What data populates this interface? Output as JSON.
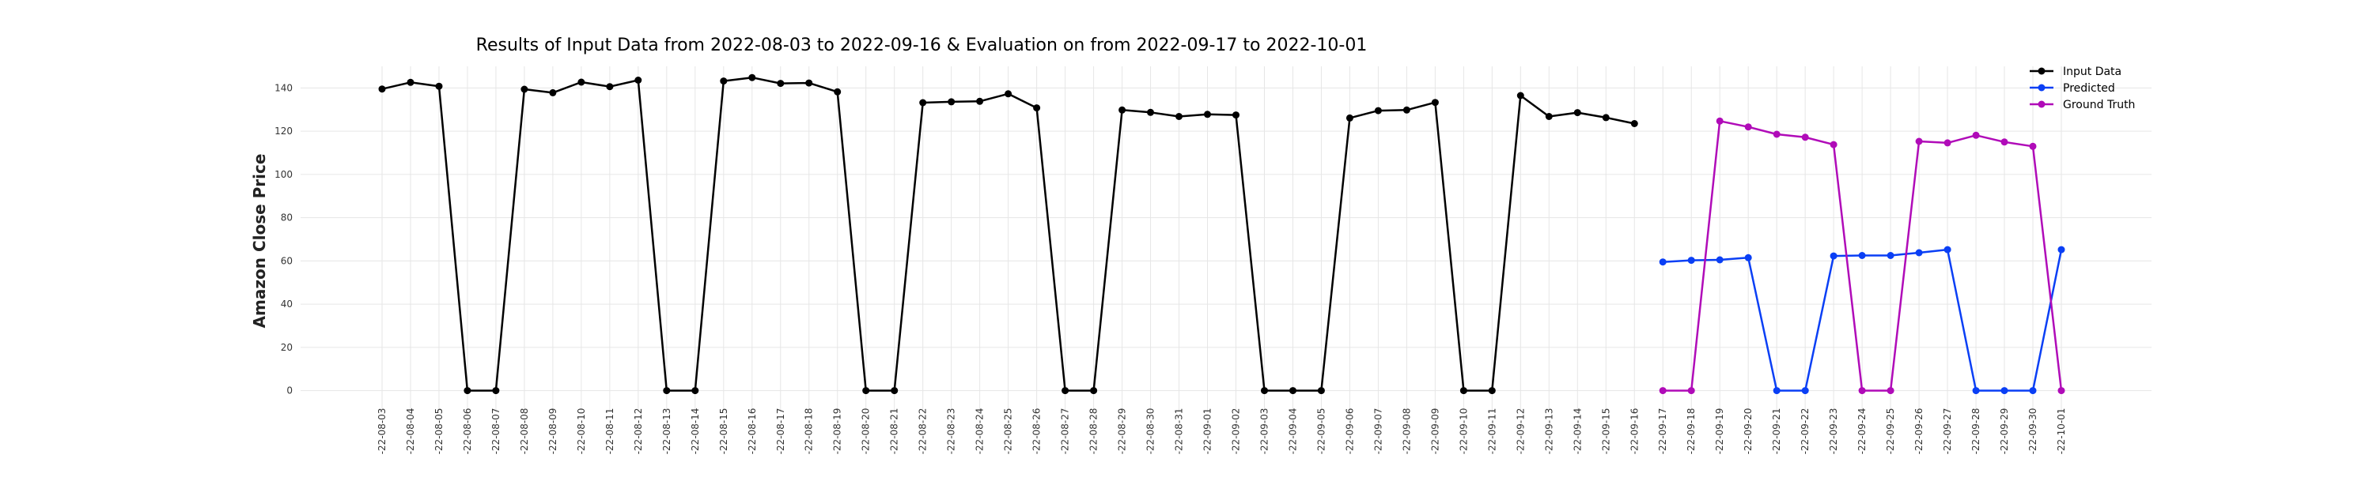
{
  "chart_data": {
    "type": "line",
    "title": "Results of Input Data from 2022-08-03 to 2022-09-16 & Evaluation on from 2022-09-17 to 2022-10-01",
    "xlabel": "",
    "ylabel": "Amazon Close Price",
    "ylim": [
      -10,
      150
    ],
    "yticks": [
      0,
      20,
      40,
      60,
      80,
      100,
      120,
      140
    ],
    "grid": true,
    "legend_position": "top-right",
    "x": [
      "2022-08-03",
      "2022-08-04",
      "2022-08-05",
      "2022-08-06",
      "2022-08-07",
      "2022-08-08",
      "2022-08-09",
      "2022-08-10",
      "2022-08-11",
      "2022-08-12",
      "2022-08-13",
      "2022-08-14",
      "2022-08-15",
      "2022-08-16",
      "2022-08-17",
      "2022-08-18",
      "2022-08-19",
      "2022-08-20",
      "2022-08-21",
      "2022-08-22",
      "2022-08-23",
      "2022-08-24",
      "2022-08-25",
      "2022-08-26",
      "2022-08-27",
      "2022-08-28",
      "2022-08-29",
      "2022-08-30",
      "2022-08-31",
      "2022-09-01",
      "2022-09-02",
      "2022-09-03",
      "2022-09-04",
      "2022-09-05",
      "2022-09-06",
      "2022-09-07",
      "2022-09-08",
      "2022-09-09",
      "2022-09-10",
      "2022-09-11",
      "2022-09-12",
      "2022-09-13",
      "2022-09-14",
      "2022-09-15",
      "2022-09-16",
      "2022-09-17",
      "2022-09-18",
      "2022-09-19",
      "2022-09-20",
      "2022-09-21",
      "2022-09-22",
      "2022-09-23",
      "2022-09-24",
      "2022-09-25",
      "2022-09-26",
      "2022-09-27",
      "2022-09-28",
      "2022-09-29",
      "2022-09-30",
      "2022-10-01"
    ],
    "x_tick_labels": [
      "-22-08-03",
      "-22-08-04",
      "-22-08-05",
      "-22-08-06",
      "-22-08-07",
      "-22-08-08",
      "-22-08-09",
      "-22-08-10",
      "-22-08-11",
      "-22-08-12",
      "-22-08-13",
      "-22-08-14",
      "-22-08-15",
      "-22-08-16",
      "-22-08-17",
      "-22-08-18",
      "-22-08-19",
      "-22-08-20",
      "-22-08-21",
      "-22-08-22",
      "-22-08-23",
      "-22-08-24",
      "-22-08-25",
      "-22-08-26",
      "-22-08-27",
      "-22-08-28",
      "-22-08-29",
      "-22-08-30",
      "-22-08-31",
      "-22-09-01",
      "-22-09-02",
      "-22-09-03",
      "-22-09-04",
      "-22-09-05",
      "-22-09-06",
      "-22-09-07",
      "-22-09-08",
      "-22-09-09",
      "-22-09-10",
      "-22-09-11",
      "-22-09-12",
      "-22-09-13",
      "-22-09-14",
      "-22-09-15",
      "-22-09-16",
      "-22-09-17",
      "-22-09-18",
      "-22-09-19",
      "-22-09-20",
      "-22-09-21",
      "-22-09-22",
      "-22-09-23",
      "-22-09-24",
      "-22-09-25",
      "-22-09-26",
      "-22-09-27",
      "-22-09-28",
      "-22-09-29",
      "-22-09-30",
      "-22-10-01"
    ],
    "series": [
      {
        "name": "Input Data",
        "color": "#000000",
        "x": [
          "2022-08-03",
          "2022-08-04",
          "2022-08-05",
          "2022-08-06",
          "2022-08-07",
          "2022-08-08",
          "2022-08-09",
          "2022-08-10",
          "2022-08-11",
          "2022-08-12",
          "2022-08-13",
          "2022-08-14",
          "2022-08-15",
          "2022-08-16",
          "2022-08-17",
          "2022-08-18",
          "2022-08-19",
          "2022-08-20",
          "2022-08-21",
          "2022-08-22",
          "2022-08-23",
          "2022-08-24",
          "2022-08-25",
          "2022-08-26",
          "2022-08-27",
          "2022-08-28",
          "2022-08-29",
          "2022-08-30",
          "2022-08-31",
          "2022-09-01",
          "2022-09-02",
          "2022-09-03",
          "2022-09-04",
          "2022-09-05",
          "2022-09-06",
          "2022-09-07",
          "2022-09-08",
          "2022-09-09",
          "2022-09-10",
          "2022-09-11",
          "2022-09-12",
          "2022-09-13",
          "2022-09-14",
          "2022-09-15",
          "2022-09-16"
        ],
        "values": [
          139.5,
          142.6,
          140.8,
          0,
          0,
          139.4,
          137.8,
          142.7,
          140.6,
          143.6,
          0,
          0,
          143.2,
          144.8,
          142.1,
          142.3,
          138.2,
          0,
          0,
          133.2,
          133.6,
          133.8,
          137.3,
          130.8,
          0,
          0,
          129.8,
          128.7,
          126.8,
          127.8,
          127.5,
          0,
          0,
          0,
          126.1,
          129.5,
          129.8,
          133.3,
          0,
          0,
          136.5,
          126.8,
          128.6,
          126.3,
          123.5
        ]
      },
      {
        "name": "Predicted",
        "color": "#0a3ff5",
        "x": [
          "2022-09-17",
          "2022-09-18",
          "2022-09-19",
          "2022-09-20",
          "2022-09-21",
          "2022-09-22",
          "2022-09-23",
          "2022-09-24",
          "2022-09-25",
          "2022-09-26",
          "2022-09-27",
          "2022-09-28",
          "2022-09-29",
          "2022-09-30",
          "2022-10-01"
        ],
        "values": [
          59.5,
          60.3,
          60.5,
          61.5,
          0,
          0,
          62.3,
          62.5,
          62.5,
          63.8,
          65.2,
          0,
          0,
          0,
          65.2
        ]
      },
      {
        "name": "Ground Truth",
        "color": "#b00bb8",
        "x": [
          "2022-09-17",
          "2022-09-18",
          "2022-09-19",
          "2022-09-20",
          "2022-09-21",
          "2022-09-22",
          "2022-09-23",
          "2022-09-24",
          "2022-09-25",
          "2022-09-26",
          "2022-09-27",
          "2022-09-28",
          "2022-09-29",
          "2022-09-30",
          "2022-10-01"
        ],
        "values": [
          0,
          0,
          124.7,
          122.0,
          118.6,
          117.2,
          113.8,
          0,
          0,
          115.3,
          114.6,
          118.1,
          115.0,
          113.0,
          0
        ]
      }
    ]
  }
}
